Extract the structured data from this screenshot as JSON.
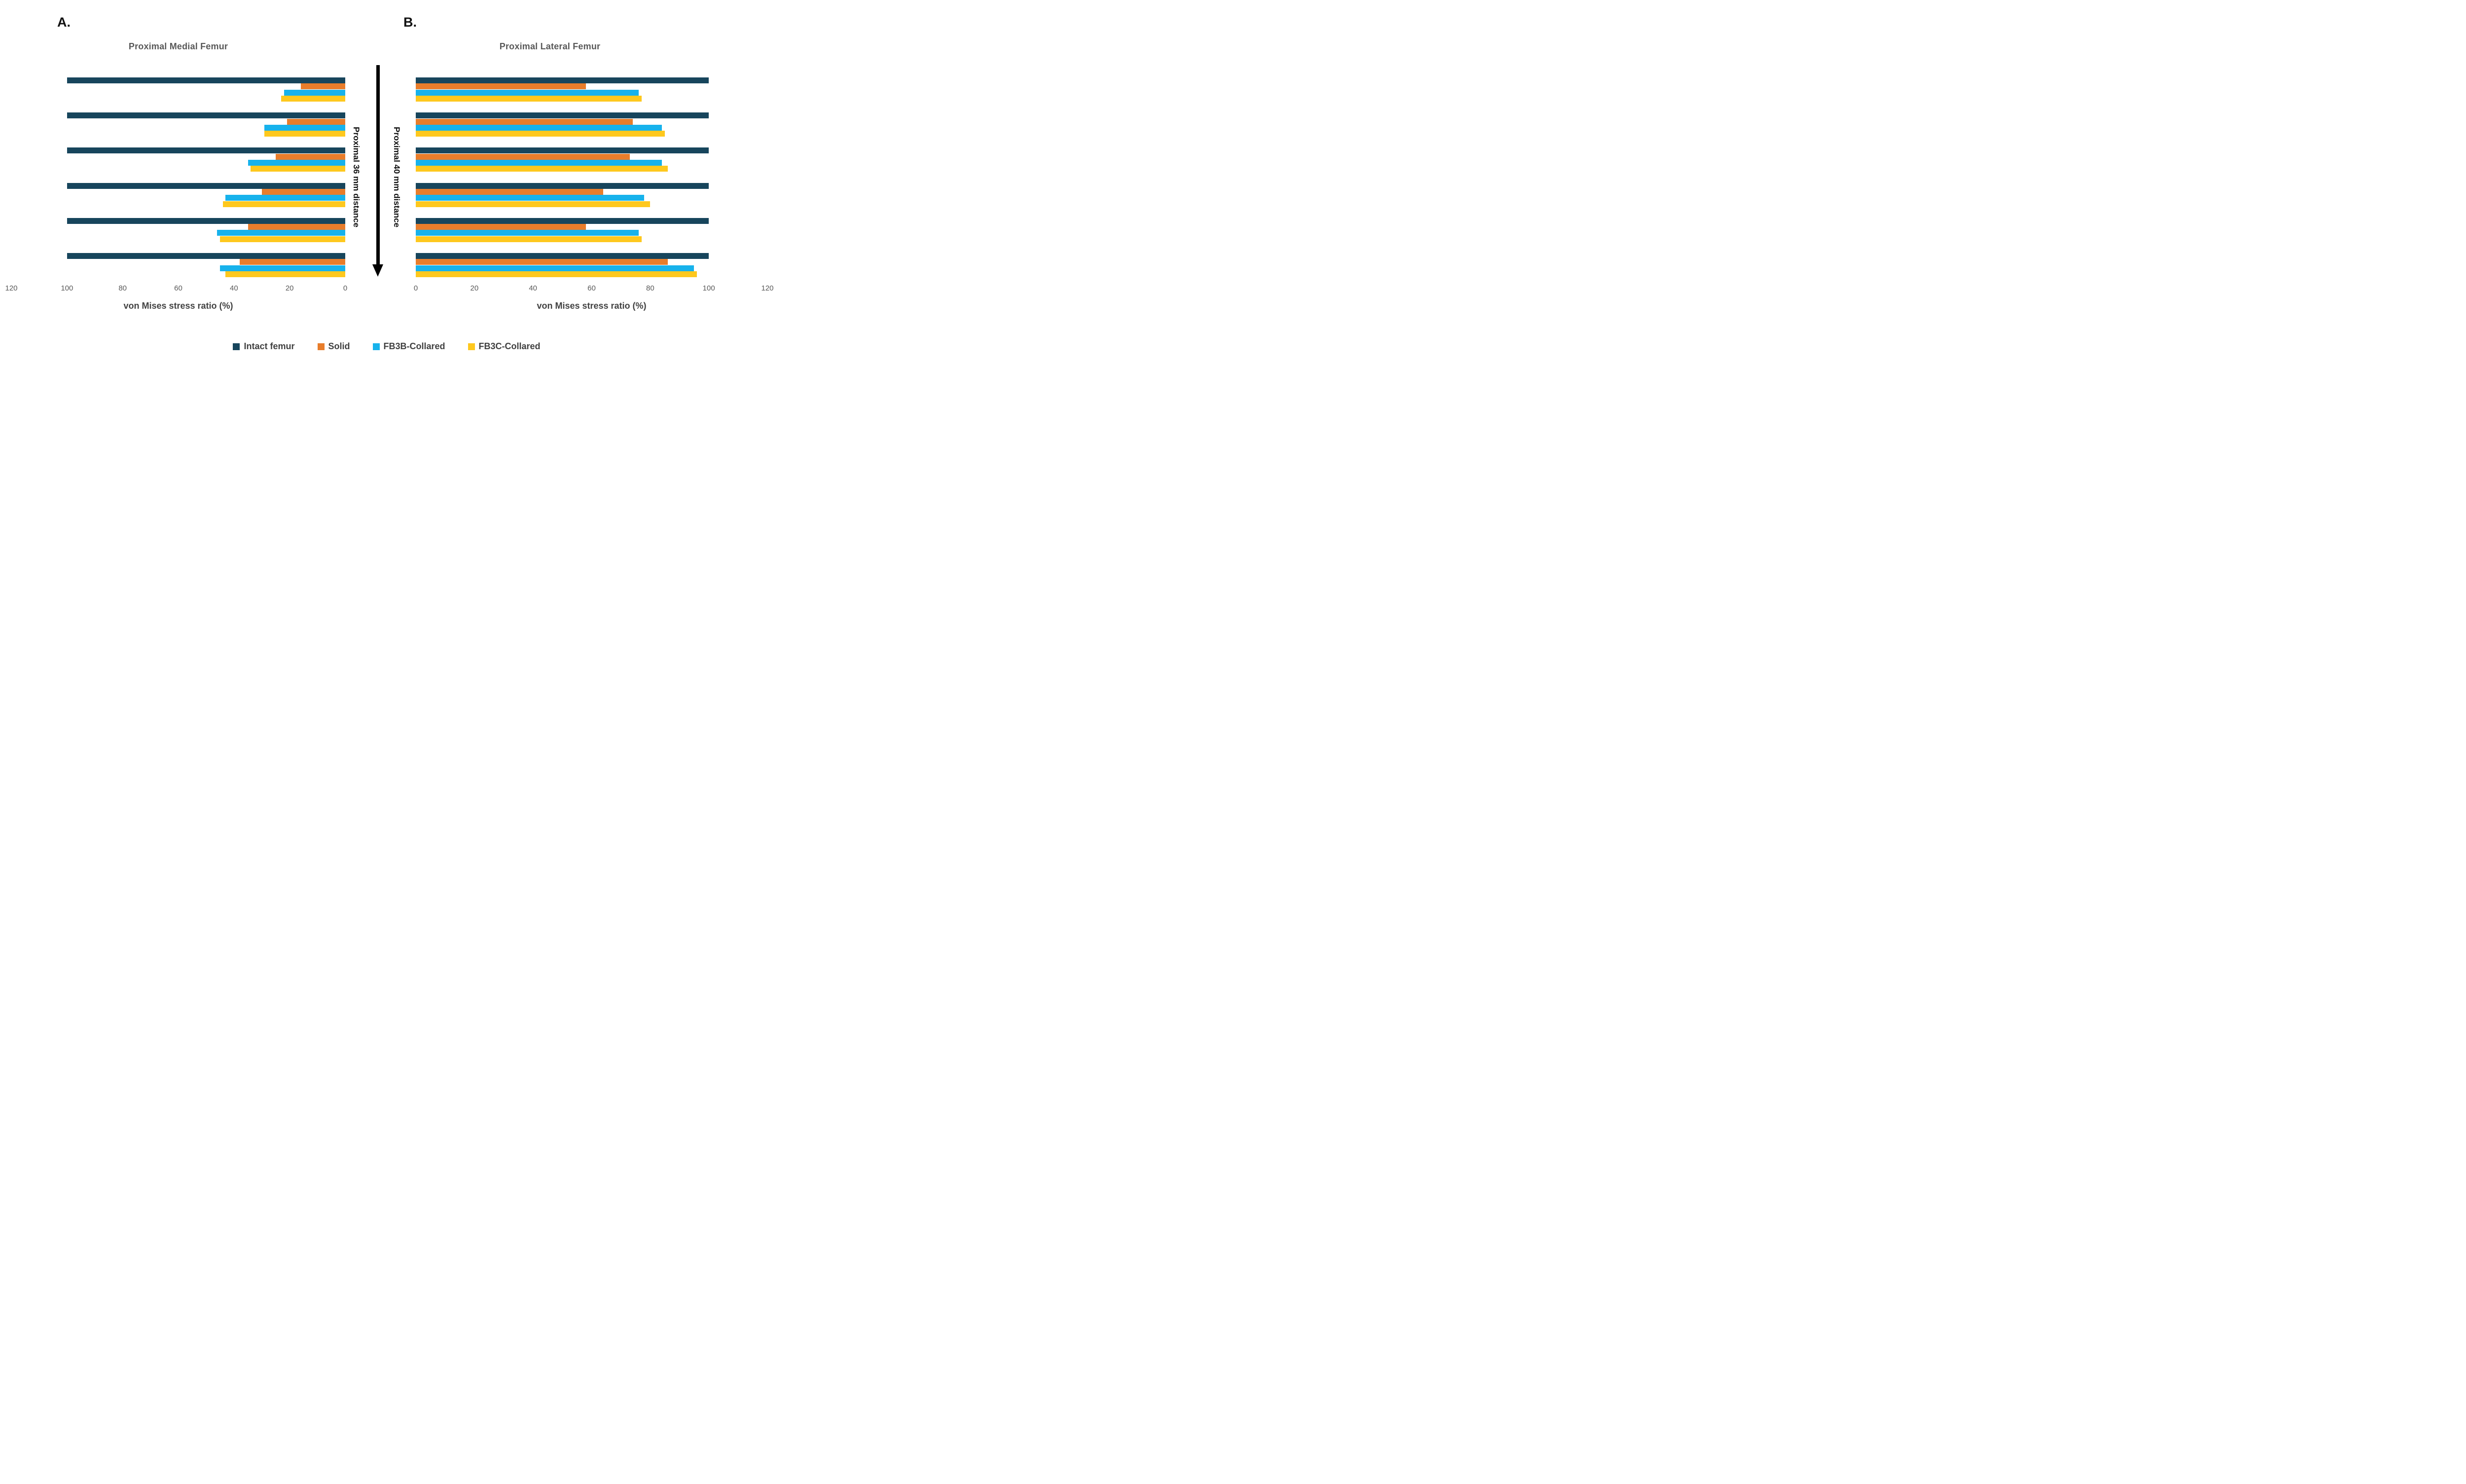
{
  "figure": {
    "panel_a_label": "A.",
    "panel_b_label": "B.",
    "arrow_left_label": "Proximal 36 mm distance",
    "arrow_right_label": "Proximal 40 mm distance"
  },
  "legend": {
    "position": "bottom",
    "items": [
      {
        "label": "Intact femur",
        "color": "#17455c"
      },
      {
        "label": "Solid",
        "color": "#e87d2b"
      },
      {
        "label": "FB3B-Collared",
        "color": "#17b2ec"
      },
      {
        "label": "FB3C-Collared",
        "color": "#fec81e"
      }
    ]
  },
  "arrow_color": "#000000",
  "chart_data": [
    {
      "type": "bar",
      "orientation": "horizontal",
      "panel": "A.",
      "title": "Proximal Medial Femur",
      "xlabel": "von Mises stress ratio (%)",
      "xlim": [
        0,
        120
      ],
      "x_reversed": true,
      "ticks": [
        120,
        100,
        80,
        60,
        40,
        20,
        0
      ],
      "grid": false,
      "n_groups": 6,
      "series": [
        {
          "name": "Intact femur",
          "values": [
            100,
            100,
            100,
            100,
            100,
            100
          ]
        },
        {
          "name": "Solid",
          "values": [
            16,
            21,
            25,
            30,
            35,
            38
          ]
        },
        {
          "name": "FB3B-Collared",
          "values": [
            22,
            29,
            35,
            43,
            46,
            45
          ]
        },
        {
          "name": "FB3C-Collared",
          "values": [
            23,
            29,
            34,
            44,
            45,
            43
          ]
        }
      ]
    },
    {
      "type": "bar",
      "orientation": "horizontal",
      "panel": "B.",
      "title": "Proximal Lateral Femur",
      "xlabel": "von Mises stress ratio (%)",
      "xlim": [
        0,
        120
      ],
      "x_reversed": false,
      "ticks": [
        0,
        20,
        40,
        60,
        80,
        100,
        120
      ],
      "grid": false,
      "n_groups": 6,
      "series": [
        {
          "name": "Intact femur",
          "values": [
            100,
            100,
            100,
            100,
            100,
            100
          ]
        },
        {
          "name": "Solid",
          "values": [
            58,
            74,
            73,
            64,
            58,
            86
          ]
        },
        {
          "name": "FB3B-Collared",
          "values": [
            76,
            84,
            84,
            78,
            76,
            95
          ]
        },
        {
          "name": "FB3C-Collared",
          "values": [
            77,
            85,
            86,
            80,
            77,
            96
          ]
        }
      ]
    }
  ]
}
